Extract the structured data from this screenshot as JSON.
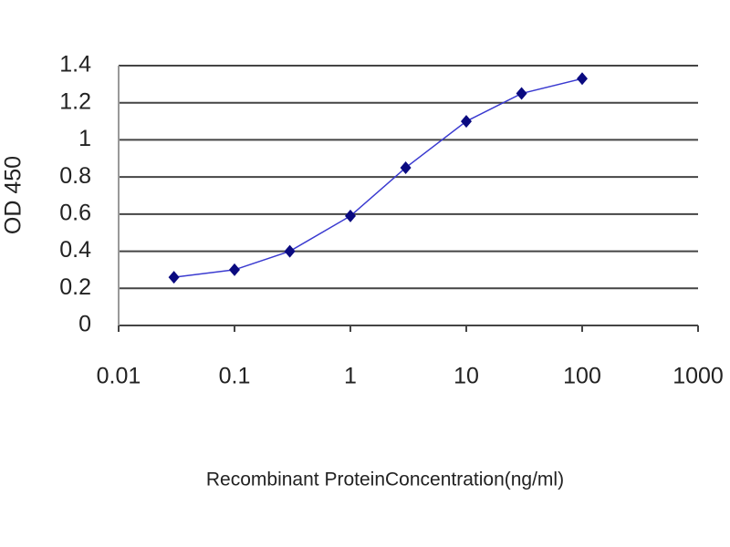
{
  "chart_data": {
    "type": "line",
    "xlabel": "Recombinant ProteinConcentration(ng/ml)",
    "ylabel": "OD 450",
    "xscale": "log",
    "x": [
      0.03,
      0.1,
      0.3,
      1,
      3,
      10,
      30,
      100
    ],
    "series": [
      {
        "color": "#3a3ad0",
        "marker_color": "#0a0a80",
        "values": [
          0.26,
          0.3,
          0.4,
          0.59,
          0.85,
          1.1,
          1.25,
          1.33
        ]
      }
    ],
    "xlim": [
      0.01,
      1000
    ],
    "xticks": [
      0.01,
      0.1,
      1,
      10,
      100,
      1000
    ],
    "ylim": [
      0,
      1.4
    ],
    "yticks": [
      0,
      0.2,
      0.4,
      0.6,
      0.8,
      1,
      1.2,
      1.4
    ],
    "grid": true
  }
}
